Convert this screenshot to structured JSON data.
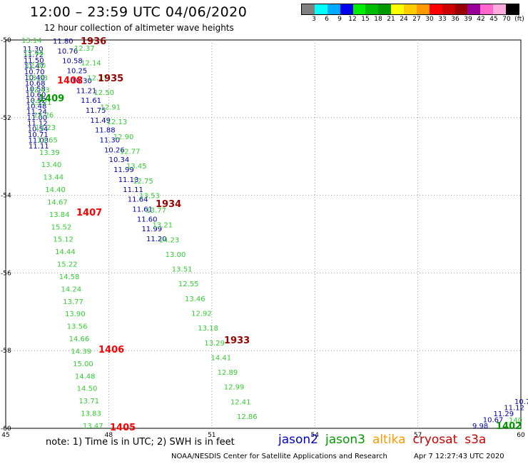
{
  "header": {
    "title": "12:00 – 23:59 UTC 04/06/2020",
    "subtitle": "12 hour collection of altimeter wave heights"
  },
  "color_scale": {
    "labels": [
      "3",
      "6",
      "9",
      "12",
      "15",
      "18",
      "21",
      "24",
      "27",
      "30",
      "33",
      "36",
      "39",
      "42",
      "45",
      "70",
      "(ft)"
    ],
    "colors": [
      "#808080",
      "#00ffff",
      "#00aaff",
      "#0000ee",
      "#00ee00",
      "#00bb00",
      "#009900",
      "#ffff00",
      "#ffcc00",
      "#ff9900",
      "#ff0000",
      "#cc0000",
      "#990000",
      "#990099",
      "#ff66cc",
      "#ffaadd",
      "#000000"
    ]
  },
  "map": {
    "x_labels": [
      "45",
      "48",
      "51",
      "54",
      "57",
      "60"
    ],
    "y_labels": [
      "-50",
      "-52",
      "-54",
      "-56",
      "-58",
      "-60"
    ],
    "grid": "dotted"
  },
  "tracks": {
    "jason2_a": {
      "color": "#0000aa",
      "values": [
        "11.80",
        "10.76",
        "10.58",
        "10.25",
        "10.30",
        "11.21",
        "11.61",
        "11.75",
        "11.49",
        "11.88",
        "11.30",
        "10.26",
        "10.34",
        "11.99",
        "11.13",
        "11.11",
        "11.64",
        "11.61",
        "11.60",
        "11.99",
        "11.20"
      ]
    },
    "jason3_a": {
      "color": "#33cc33",
      "values": [
        "12.37",
        "12.14",
        "12.27",
        "12.50",
        "12.91",
        "12.13",
        "12.90",
        "12.77",
        "13.45",
        "12.75",
        "13.53",
        "13.77",
        "13.21",
        "14.23",
        "13.00",
        "13.51",
        "12.55",
        "13.46",
        "12.92",
        "13.18",
        "13.29",
        "14.41",
        "12.89",
        "12.99",
        "12.41",
        "12.86"
      ]
    },
    "jason2_b": {
      "color": "#0000aa",
      "values": [
        "11.30",
        "11.72",
        "11.50",
        "11.47",
        "10.70",
        "10.40",
        "10.68",
        "10.58",
        "10.60",
        "10.52",
        "10.48",
        "11.24",
        "11.00",
        "11.12",
        "10.54",
        "10.71",
        "11.03",
        "11.11"
      ]
    },
    "jason3_b": {
      "color": "#33cc33",
      "values": [
        "13.14",
        "12.44",
        "12.50",
        "13.33",
        "13.43",
        "13.21",
        "13.26",
        "13.23",
        "13.65",
        "13.39",
        "13.40",
        "13.44",
        "14.40",
        "14.67",
        "13.84",
        "15.52",
        "15.12",
        "14.44",
        "15.22",
        "14.58",
        "14.24",
        "13.77",
        "13.90",
        "13.56",
        "14.66",
        "14.39",
        "15.00",
        "14.48",
        "14.50",
        "13.71",
        "13.83",
        "13.47"
      ]
    },
    "jason2_c": {
      "color": "#0000aa",
      "values": [
        "9.98",
        "10.67",
        "11.29",
        "11.12",
        "10.7"
      ]
    },
    "jason3_c": {
      "color": "#33cc33",
      "values": [
        "140"
      ]
    }
  },
  "time_labels": [
    {
      "text": "1936",
      "color": "#990000"
    },
    {
      "text": "1935",
      "color": "#990000"
    },
    {
      "text": "1408",
      "color": "#ff0000"
    },
    {
      "text": "1409",
      "color": "#009900"
    },
    {
      "text": "1934",
      "color": "#990000"
    },
    {
      "text": "1407",
      "color": "#ff0000"
    },
    {
      "text": "1933",
      "color": "#990000"
    },
    {
      "text": "1406",
      "color": "#ff0000"
    },
    {
      "text": "1405",
      "color": "#ff0000"
    },
    {
      "text": "1402",
      "color": "#009900"
    }
  ],
  "footer": {
    "note": "note: 1) Time is in UTC; 2) SWH is in feet",
    "satellites": [
      {
        "name": "jason2",
        "color": "#0000cc"
      },
      {
        "name": "jason3",
        "color": "#009900"
      },
      {
        "name": "altika",
        "color": "#ff9900"
      },
      {
        "name": "cryosat",
        "color": "#cc0000"
      },
      {
        "name": "s3a",
        "color": "#cc0000"
      }
    ],
    "credit": "NOAA/NESDIS Center for Satellite Applications and Research",
    "timestamp": "Apr 7 12:27:43 UTC 2020"
  }
}
